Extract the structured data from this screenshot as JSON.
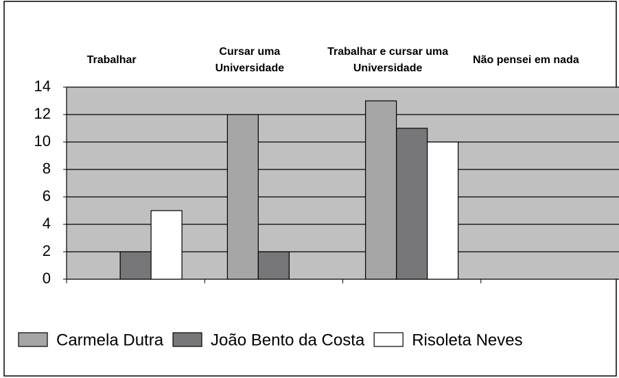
{
  "chart_data": {
    "type": "bar",
    "categories": [
      "Trabalhar",
      "Cursar uma Universidade",
      "Trabalhar e cursar uma Universidade",
      "Não pensei em nada"
    ],
    "series": [
      {
        "name": "Carmela Dutra",
        "color": "#a6a6a6",
        "values": [
          0,
          12,
          13,
          0
        ]
      },
      {
        "name": "João Bento da Costa",
        "color": "#77777a",
        "values": [
          2,
          2,
          11,
          0
        ]
      },
      {
        "name": "Risoleta Neves",
        "color": "#ffffff",
        "values": [
          5,
          0,
          10,
          0
        ]
      }
    ],
    "ylim": [
      0,
      14
    ],
    "yticks": [
      0,
      2,
      4,
      6,
      8,
      10,
      12,
      14
    ],
    "grid": true,
    "legend": "bottom"
  }
}
